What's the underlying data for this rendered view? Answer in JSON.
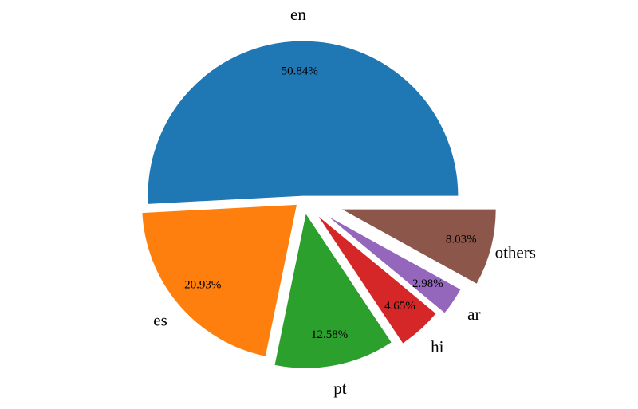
{
  "chart_data": {
    "type": "pie",
    "categories": [
      "en",
      "es",
      "pt",
      "hi",
      "ar",
      "others"
    ],
    "values": [
      50.84,
      20.93,
      12.58,
      4.65,
      2.98,
      8.03
    ],
    "value_labels": [
      "50.84%",
      "20.93%",
      "12.58%",
      "4.65%",
      "2.98%",
      "8.03%"
    ],
    "colors": [
      "#1f77b4",
      "#ff7f0e",
      "#2ca02c",
      "#d62728",
      "#9467bd",
      "#8c564b"
    ]
  }
}
